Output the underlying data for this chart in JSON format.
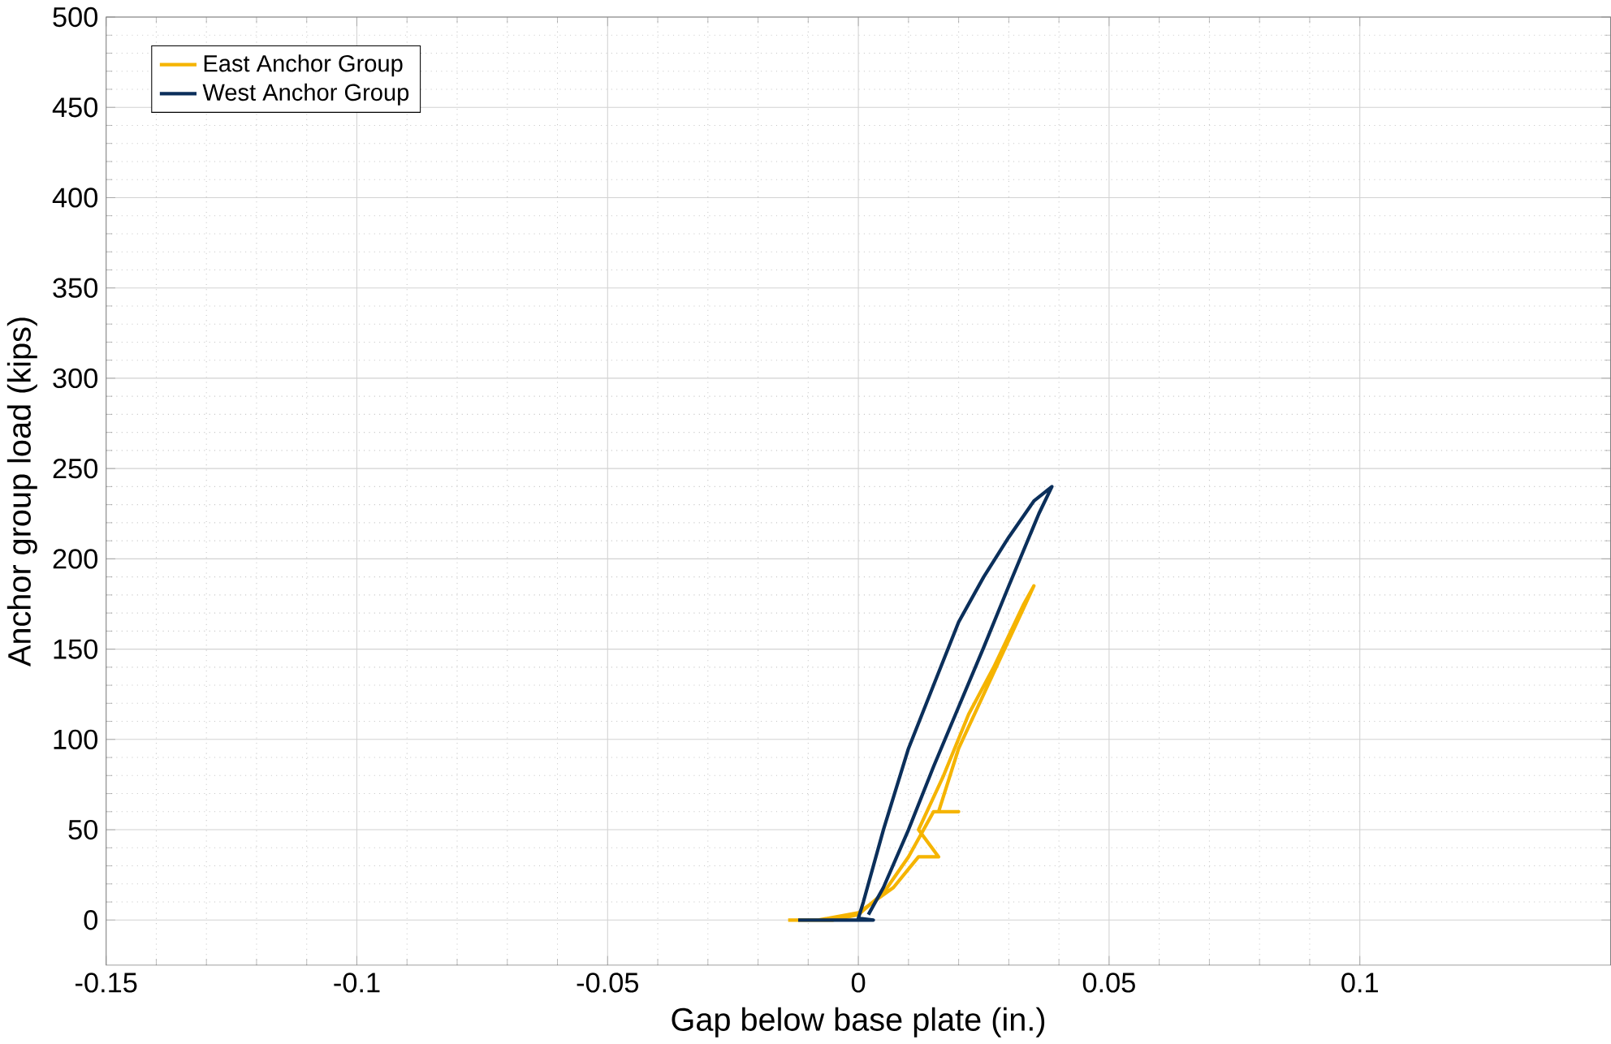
{
  "chart_data": {
    "type": "line",
    "xlabel": "Gap below base plate (in.)",
    "ylabel": "Anchor group load (kips)",
    "xlim": [
      -0.15,
      0.15
    ],
    "ylim": [
      -25,
      500
    ],
    "xticks": [
      -0.15,
      -0.1,
      -0.05,
      0,
      0.05,
      0.1
    ],
    "yticks": [
      0,
      50,
      100,
      150,
      200,
      250,
      300,
      350,
      400,
      450,
      500
    ],
    "grid": true,
    "legend": "top left",
    "marker": "none",
    "line_style": "solid",
    "series": [
      {
        "name": "East Anchor Group",
        "color": "#f5b400",
        "x": [
          -0.014,
          -0.005,
          0.0,
          0.005,
          0.01,
          0.015,
          0.02,
          0.016,
          0.02,
          0.025,
          0.03,
          0.035,
          0.033,
          0.027,
          0.022,
          0.017,
          0.012,
          0.016,
          0.012,
          0.007,
          0.0,
          -0.008
        ],
        "values": [
          0,
          0,
          3,
          15,
          35,
          60,
          60,
          60,
          95,
          125,
          155,
          185,
          175,
          140,
          114,
          80,
          50,
          35,
          35,
          18,
          4,
          0
        ]
      },
      {
        "name": "West Anchor Group",
        "color": "#0b2f5b",
        "x": [
          -0.012,
          0.003,
          0.0,
          0.001,
          0.005,
          0.01,
          0.015,
          0.02,
          0.025,
          0.03,
          0.035,
          0.0386,
          0.036,
          0.03,
          0.025,
          0.02,
          0.015,
          0.01,
          0.005,
          0.002
        ],
        "values": [
          0,
          0,
          1,
          10,
          50,
          95,
          130,
          165,
          190,
          212,
          232,
          240,
          225,
          185,
          151,
          118,
          85,
          50,
          18,
          3
        ]
      }
    ]
  }
}
